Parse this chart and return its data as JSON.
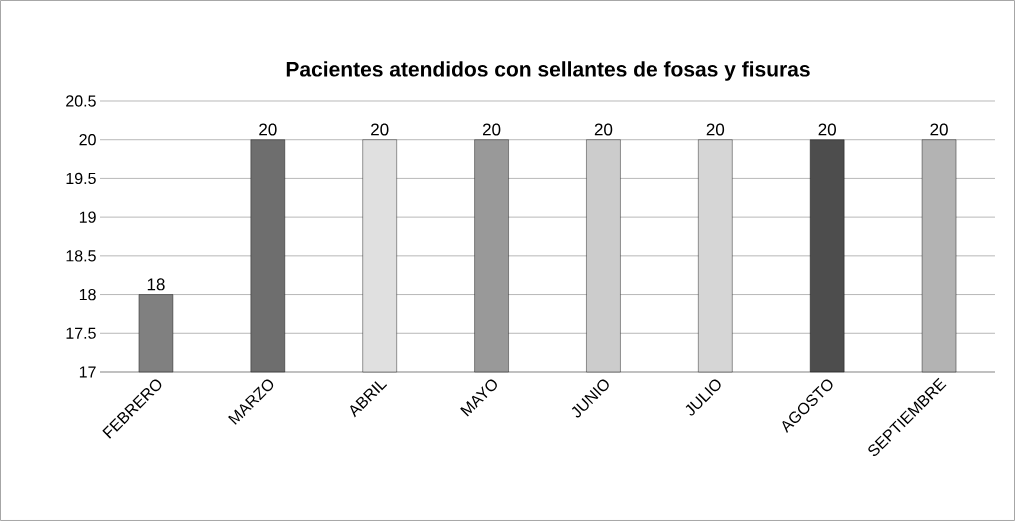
{
  "chart_data": {
    "type": "bar",
    "title": "Pacientes atendidos con sellantes de fosas y fisuras",
    "categories": [
      "FEBRERO",
      "MARZO",
      "ABRIL",
      "MAYO",
      "JUNIO",
      "JULIO",
      "AGOSTO",
      "SEPTIEMBRE"
    ],
    "values": [
      18,
      20,
      20,
      20,
      20,
      20,
      20,
      20
    ],
    "colors": [
      "#808080",
      "#6e6e6e",
      "#e0e0e0",
      "#999999",
      "#cccccc",
      "#d6d6d6",
      "#4d4d4d",
      "#b3b3b3"
    ],
    "ylim": [
      17,
      20.5
    ],
    "yticks": [
      17,
      17.5,
      18,
      18.5,
      19,
      19.5,
      20,
      20.5
    ],
    "grid": "y",
    "data_labels": true
  }
}
